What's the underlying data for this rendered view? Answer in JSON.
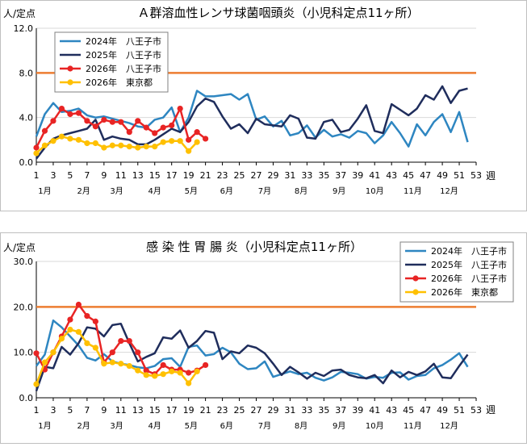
{
  "chart_data": [
    {
      "type": "line",
      "title": "Ａ群溶血性レンサ球菌咽頭炎（小児科定点11ヶ所）",
      "ylabel": "人/定点",
      "xlabel": "週",
      "ylim": [
        0,
        12
      ],
      "yticks": [
        "0.0",
        "4.0",
        "8.0",
        "12.0"
      ],
      "xlim": [
        1,
        53
      ],
      "xticks": [
        1,
        3,
        5,
        7,
        9,
        11,
        13,
        15,
        17,
        19,
        21,
        23,
        25,
        27,
        29,
        31,
        33,
        35,
        37,
        39,
        41,
        43,
        45,
        47,
        49,
        51,
        53
      ],
      "months": [
        {
          "label": "1月",
          "week": 2
        },
        {
          "label": "2月",
          "week": 6.6
        },
        {
          "label": "3月",
          "week": 10.5
        },
        {
          "label": "4月",
          "week": 15
        },
        {
          "label": "5月",
          "week": 19.3
        },
        {
          "label": "6月",
          "week": 23.5
        },
        {
          "label": "7月",
          "week": 28
        },
        {
          "label": "8月",
          "week": 32.3
        },
        {
          "label": "9月",
          "week": 36.8
        },
        {
          "label": "10月",
          "week": 41
        },
        {
          "label": "11月",
          "week": 45.5
        },
        {
          "label": "12月",
          "week": 49.8
        }
      ],
      "legend_position": "top-left",
      "threshold": {
        "value": 8.0,
        "color": "#ED7D31"
      },
      "series": [
        {
          "name": "2024年　八王子市",
          "color": "#2E86C1",
          "marker": false,
          "width": 2.5,
          "x": [
            1,
            2,
            3,
            4,
            5,
            6,
            7,
            8,
            9,
            10,
            11,
            12,
            13,
            14,
            15,
            16,
            17,
            18,
            19,
            20,
            21,
            22,
            23,
            24,
            25,
            26,
            27,
            28,
            29,
            30,
            31,
            32,
            33,
            34,
            35,
            36,
            37,
            38,
            39,
            40,
            41,
            42,
            43,
            44,
            45,
            46,
            47,
            48,
            49,
            50,
            51,
            52
          ],
          "values": [
            2.3,
            4.3,
            5.3,
            4.5,
            4.6,
            4.8,
            4.2,
            4.0,
            4.1,
            3.9,
            3.7,
            3.5,
            3.2,
            3.1,
            3.8,
            4.0,
            4.9,
            2.7,
            4.0,
            6.4,
            5.9,
            5.9,
            6.0,
            6.1,
            5.6,
            6.1,
            3.8,
            4.1,
            3.2,
            3.7,
            2.4,
            2.6,
            3.3,
            2.2,
            2.9,
            2.3,
            2.5,
            2.2,
            2.8,
            2.6,
            1.7,
            2.4,
            3.6,
            2.6,
            1.4,
            3.4,
            2.4,
            3.6,
            4.3,
            2.7,
            4.5,
            1.8
          ]
        },
        {
          "name": "2025年　八王子市",
          "color": "#1F2D5C",
          "marker": false,
          "width": 2.5,
          "x": [
            1,
            2,
            3,
            4,
            5,
            6,
            7,
            8,
            9,
            10,
            11,
            12,
            13,
            14,
            15,
            16,
            17,
            18,
            19,
            20,
            21,
            22,
            23,
            24,
            25,
            26,
            27,
            28,
            29,
            30,
            31,
            32,
            33,
            34,
            35,
            36,
            37,
            38,
            39,
            40,
            41,
            42,
            43,
            44,
            45,
            46,
            47,
            48,
            49,
            50,
            51,
            52
          ],
          "values": [
            0.3,
            1.3,
            2.1,
            2.4,
            2.6,
            2.8,
            3.0,
            3.8,
            2.0,
            2.3,
            2.1,
            2.0,
            1.6,
            1.6,
            2.0,
            2.5,
            3.0,
            2.7,
            3.6,
            5.0,
            5.7,
            5.4,
            4.1,
            3.0,
            3.4,
            2.6,
            3.9,
            3.4,
            3.3,
            3.2,
            4.2,
            3.9,
            2.2,
            2.1,
            3.6,
            3.8,
            2.7,
            2.9,
            3.9,
            5.1,
            2.8,
            2.6,
            5.2,
            4.7,
            4.2,
            4.8,
            6.0,
            5.6,
            6.8,
            5.3,
            6.4,
            6.6
          ]
        },
        {
          "name": "2026年　八王子市",
          "color": "#E82424",
          "marker": true,
          "width": 2.5,
          "x": [
            1,
            2,
            3,
            4,
            5,
            6,
            7,
            8,
            9,
            10,
            11,
            12,
            13,
            14,
            15,
            16,
            17,
            18,
            19,
            20,
            21
          ],
          "values": [
            1.3,
            2.8,
            3.7,
            4.8,
            4.3,
            4.4,
            3.7,
            3.2,
            3.8,
            3.6,
            3.6,
            2.7,
            3.7,
            3.1,
            2.6,
            3.1,
            3.3,
            4.8,
            2.0,
            2.7,
            2.1
          ]
        },
        {
          "name": "2026年　東京都",
          "color": "#FFC000",
          "marker": true,
          "width": 2.5,
          "x": [
            1,
            2,
            3,
            4,
            5,
            6,
            7,
            8,
            9,
            10,
            11,
            12,
            13,
            14,
            15,
            16,
            17,
            18,
            19,
            20
          ],
          "values": [
            0.8,
            1.5,
            1.9,
            2.3,
            2.1,
            2.0,
            1.7,
            1.7,
            1.3,
            1.5,
            1.5,
            1.4,
            1.3,
            1.4,
            1.4,
            1.8,
            1.9,
            1.9,
            1.0,
            1.8
          ]
        }
      ]
    },
    {
      "type": "line",
      "title": "感 染 性 胃 腸 炎（小児科定点11ヶ所）",
      "ylabel": "人/定点",
      "xlabel": "週",
      "ylim": [
        0,
        30
      ],
      "yticks": [
        "0.0",
        "10.0",
        "20.0",
        "30.0"
      ],
      "xlim": [
        1,
        53
      ],
      "xticks": [
        1,
        3,
        5,
        7,
        9,
        11,
        13,
        15,
        17,
        19,
        21,
        23,
        25,
        27,
        29,
        31,
        33,
        35,
        37,
        39,
        41,
        43,
        45,
        47,
        49,
        51,
        53
      ],
      "months": [
        {
          "label": "1月",
          "week": 2
        },
        {
          "label": "2月",
          "week": 6.6
        },
        {
          "label": "3月",
          "week": 10.5
        },
        {
          "label": "4月",
          "week": 15
        },
        {
          "label": "5月",
          "week": 19.3
        },
        {
          "label": "6月",
          "week": 23.5
        },
        {
          "label": "7月",
          "week": 28
        },
        {
          "label": "8月",
          "week": 32.3
        },
        {
          "label": "9月",
          "week": 36.8
        },
        {
          "label": "10月",
          "week": 41
        },
        {
          "label": "11月",
          "week": 45.5
        },
        {
          "label": "12月",
          "week": 49.8
        }
      ],
      "legend_position": "top-right",
      "threshold": {
        "value": 20.0,
        "color": "#ED7D31"
      },
      "series": [
        {
          "name": "2024年　八王子市",
          "color": "#2E86C1",
          "marker": false,
          "width": 2.5,
          "x": [
            1,
            2,
            3,
            4,
            5,
            6,
            7,
            8,
            9,
            10,
            11,
            12,
            13,
            14,
            15,
            16,
            17,
            18,
            19,
            20,
            21,
            22,
            23,
            24,
            25,
            26,
            27,
            28,
            29,
            30,
            31,
            32,
            33,
            34,
            35,
            36,
            37,
            38,
            39,
            40,
            41,
            42,
            43,
            44,
            45,
            46,
            47,
            48,
            49,
            50,
            51,
            52
          ],
          "values": [
            7.0,
            9.5,
            17.0,
            15.5,
            13.5,
            11.5,
            8.8,
            8.2,
            9.6,
            8.0,
            7.5,
            7.2,
            6.7,
            6.5,
            7.0,
            8.5,
            8.7,
            6.8,
            11.2,
            11.5,
            9.3,
            9.6,
            11.0,
            10.0,
            7.5,
            6.3,
            6.5,
            8.0,
            4.6,
            5.2,
            5.8,
            5.2,
            5.5,
            4.4,
            3.8,
            4.5,
            5.7,
            5.5,
            5.2,
            4.2,
            4.6,
            4.4,
            5.5,
            5.6,
            4.0,
            4.8,
            5.0,
            6.5,
            7.2,
            8.4,
            9.8,
            6.8
          ]
        },
        {
          "name": "2025年　八王子市",
          "color": "#1F2D5C",
          "marker": false,
          "width": 2.5,
          "x": [
            1,
            2,
            3,
            4,
            5,
            6,
            7,
            8,
            9,
            10,
            11,
            12,
            13,
            14,
            15,
            16,
            17,
            18,
            19,
            20,
            21,
            22,
            23,
            24,
            25,
            26,
            27,
            28,
            29,
            30,
            31,
            32,
            33,
            34,
            35,
            36,
            37,
            38,
            39,
            40,
            41,
            42,
            43,
            44,
            45,
            46,
            47,
            48,
            49,
            50,
            51,
            52
          ],
          "values": [
            1.5,
            6.8,
            6.5,
            11.2,
            9.5,
            12.0,
            15.5,
            15.2,
            13.5,
            16.0,
            16.3,
            12.0,
            8.0,
            9.0,
            9.8,
            13.3,
            13.0,
            14.8,
            11.0,
            12.5,
            14.7,
            14.3,
            8.5,
            10.2,
            9.8,
            11.5,
            11.0,
            9.8,
            7.5,
            5.0,
            6.8,
            5.6,
            4.2,
            5.5,
            4.8,
            6.0,
            6.2,
            5.0,
            4.5,
            4.3,
            5.0,
            3.2,
            6.0,
            4.5,
            5.7,
            5.0,
            5.8,
            7.5,
            4.5,
            4.3,
            7.0,
            9.5
          ]
        },
        {
          "name": "2026年　八王子市",
          "color": "#E82424",
          "marker": true,
          "width": 2.5,
          "x": [
            1,
            2,
            3,
            4,
            5,
            6,
            7,
            8,
            9,
            10,
            11,
            12,
            13,
            14,
            15,
            16,
            17,
            18,
            19,
            20,
            21
          ],
          "values": [
            9.8,
            6.2,
            10.0,
            13.5,
            17.2,
            20.5,
            18.0,
            16.8,
            7.8,
            10.0,
            12.5,
            12.5,
            10.0,
            6.0,
            5.2,
            7.2,
            6.2,
            6.2,
            5.5,
            6.0,
            7.2
          ]
        },
        {
          "name": "2026年　東京都",
          "color": "#FFC000",
          "marker": true,
          "width": 2.5,
          "x": [
            1,
            2,
            3,
            4,
            5,
            6,
            7,
            8,
            9,
            10,
            11,
            12,
            13,
            14,
            15,
            16,
            17,
            18,
            19,
            20
          ],
          "values": [
            3.0,
            7.8,
            10.0,
            13.0,
            15.0,
            14.5,
            12.0,
            11.0,
            7.5,
            7.8,
            7.5,
            7.0,
            6.0,
            5.0,
            4.8,
            5.2,
            5.8,
            5.5,
            3.2,
            5.8
          ]
        }
      ]
    }
  ]
}
